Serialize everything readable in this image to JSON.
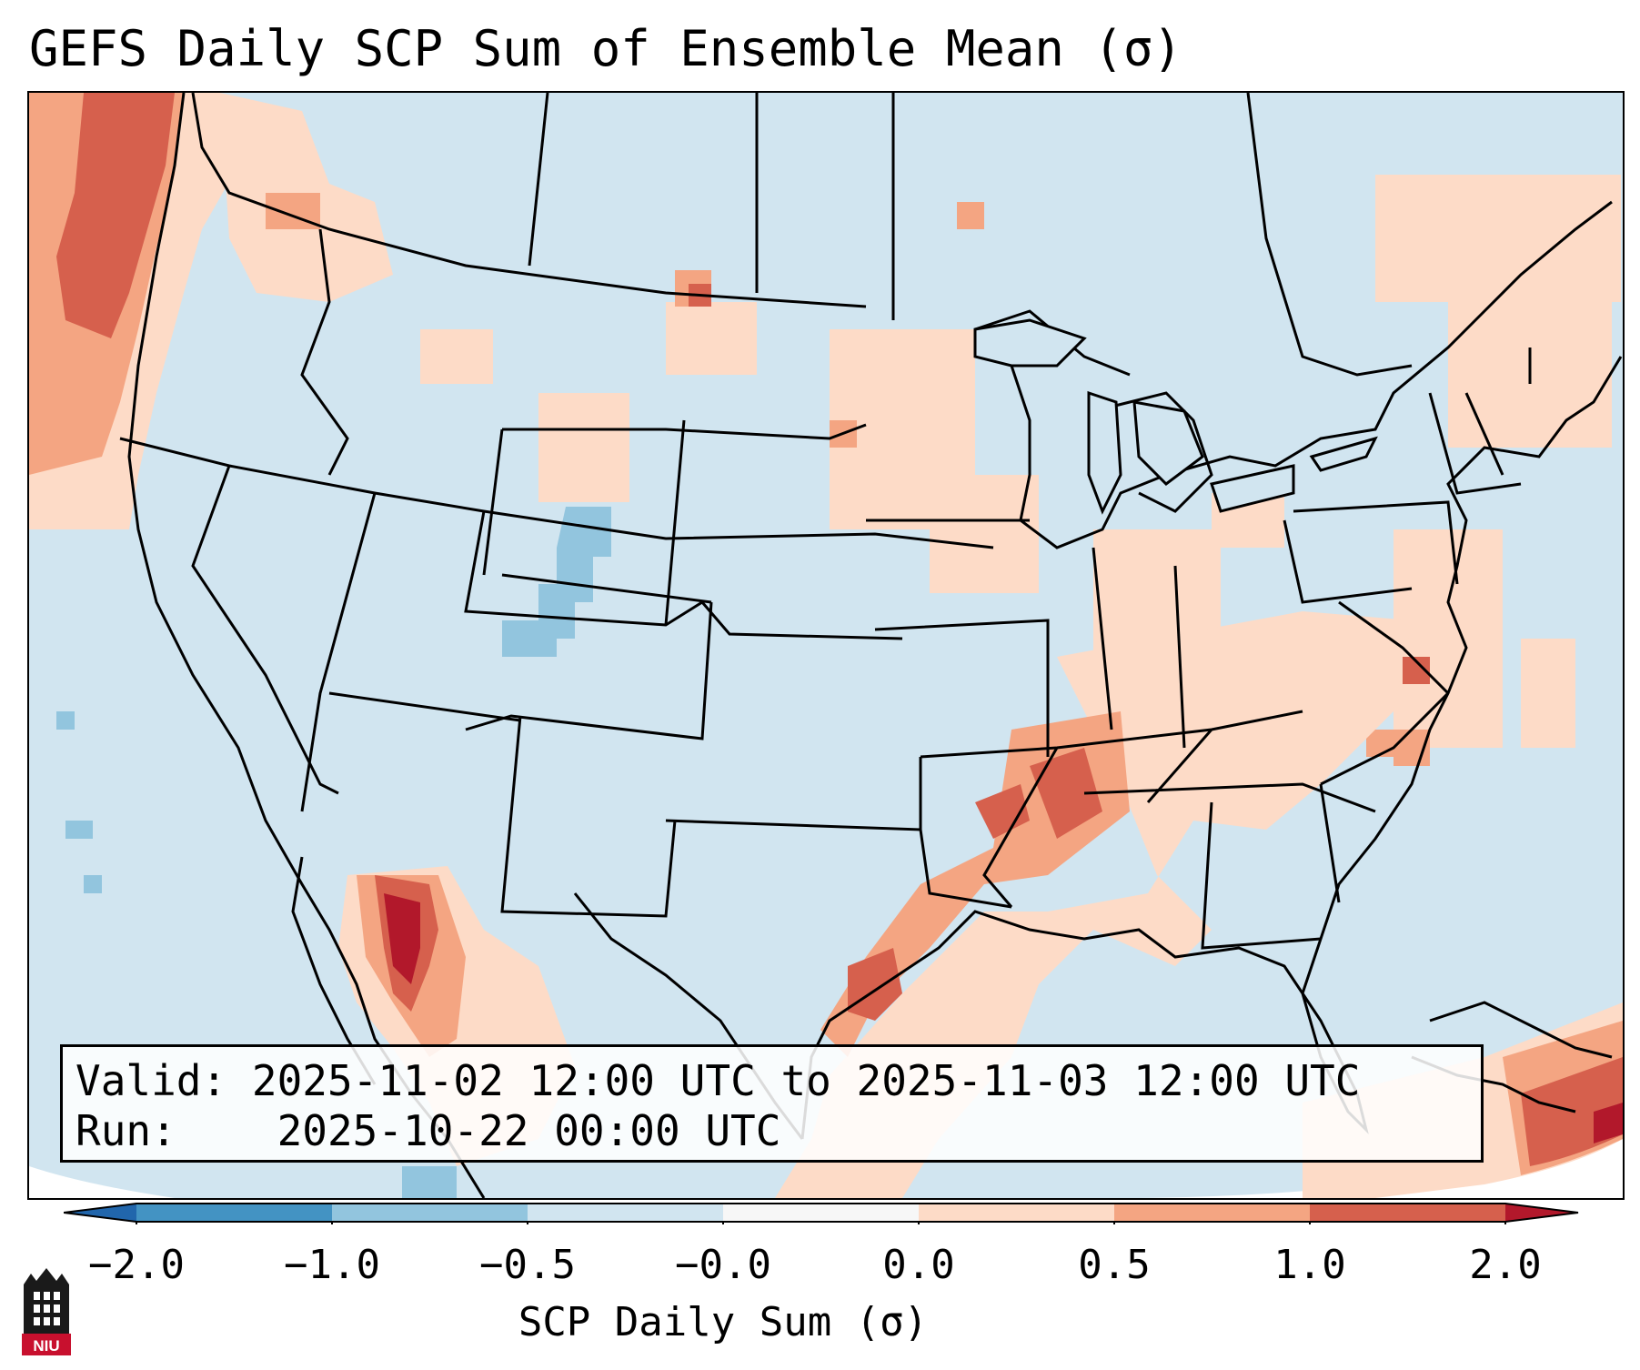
{
  "title": "GEFS Daily SCP Sum of Ensemble Mean (σ)",
  "info": {
    "valid_label": "Valid:",
    "valid_value": "2025-11-02 12:00 UTC to 2025-11-03 12:00 UTC",
    "run_label": "Run:",
    "run_value": "2025-10-22 00:00 UTC"
  },
  "colorbar": {
    "label": "SCP Daily Sum (σ)",
    "ticks": [
      "−2.0",
      "−1.0",
      "−0.5",
      "−0.0",
      "0.0",
      "0.5",
      "1.0",
      "2.0"
    ],
    "colors": {
      "extend_low": "#2166ac",
      "bin_1": "#4393c3",
      "bin_2": "#92c5de",
      "bin_3": "#d1e5f0",
      "bin_4": "#f7f7f7",
      "bin_5": "#fddbc7",
      "bin_6": "#f4a582",
      "bin_7": "#d6604d",
      "extend_high": "#b2182b"
    }
  },
  "map": {
    "background_color": "#d1e5f0",
    "regions": [
      {
        "name": "pacific-northwest-maximum",
        "level": "high"
      },
      {
        "name": "northern-mexico-maximum",
        "level": "very high"
      },
      {
        "name": "gulf-coast-texas",
        "level": "moderate"
      },
      {
        "name": "lower-mississippi-valley",
        "level": "moderate"
      },
      {
        "name": "caribbean-maximum",
        "level": "very high"
      },
      {
        "name": "colorado-minimum",
        "level": "low"
      }
    ]
  },
  "logo": {
    "text": "NIU"
  }
}
